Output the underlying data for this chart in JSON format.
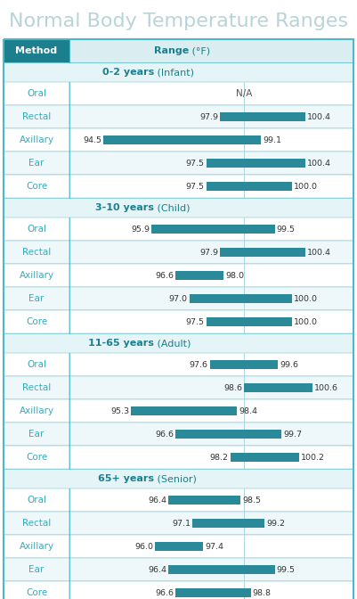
{
  "title": "Normal Body Temperature Ranges",
  "header_method": "Method",
  "header_range": "Range",
  "header_range_unit": " (°F)",
  "teal_dark": "#1b7f8e",
  "teal_bar": "#2a8a9a",
  "teal_header_bg": "#daeef2",
  "teal_group_bg": "#e4f4f7",
  "white_row_bg": "#ffffff",
  "alt_row_bg": "#eef8fb",
  "border_color": "#4fb8c8",
  "title_color": "#b8d4d8",
  "method_color": "#3aaabb",
  "groups": [
    {
      "label": "0-2 years",
      "sublabel": " (Infant)",
      "rows": [
        {
          "method": "Oral",
          "lo": null,
          "hi": null,
          "note": "N/A"
        },
        {
          "method": "Rectal",
          "lo": 97.9,
          "hi": 100.4
        },
        {
          "method": "Axillary",
          "lo": 94.5,
          "hi": 99.1
        },
        {
          "method": "Ear",
          "lo": 97.5,
          "hi": 100.4
        },
        {
          "method": "Core",
          "lo": 97.5,
          "hi": 100.0
        }
      ]
    },
    {
      "label": "3-10 years",
      "sublabel": " (Child)",
      "rows": [
        {
          "method": "Oral",
          "lo": 95.9,
          "hi": 99.5
        },
        {
          "method": "Rectal",
          "lo": 97.9,
          "hi": 100.4
        },
        {
          "method": "Axillary",
          "lo": 96.6,
          "hi": 98.0
        },
        {
          "method": "Ear",
          "lo": 97.0,
          "hi": 100.0
        },
        {
          "method": "Core",
          "lo": 97.5,
          "hi": 100.0
        }
      ]
    },
    {
      "label": "11-65 years",
      "sublabel": " (Adult)",
      "rows": [
        {
          "method": "Oral",
          "lo": 97.6,
          "hi": 99.6
        },
        {
          "method": "Rectal",
          "lo": 98.6,
          "hi": 100.6
        },
        {
          "method": "Axillary",
          "lo": 95.3,
          "hi": 98.4
        },
        {
          "method": "Ear",
          "lo": 96.6,
          "hi": 99.7
        },
        {
          "method": "Core",
          "lo": 98.2,
          "hi": 100.2
        }
      ]
    },
    {
      "label": "65+ years",
      "sublabel": " (Senior)",
      "rows": [
        {
          "method": "Oral",
          "lo": 96.4,
          "hi": 98.5
        },
        {
          "method": "Rectal",
          "lo": 97.1,
          "hi": 99.2
        },
        {
          "method": "Axillary",
          "lo": 96.0,
          "hi": 97.4
        },
        {
          "method": "Ear",
          "lo": 96.4,
          "hi": 99.5
        },
        {
          "method": "Core",
          "lo": 96.6,
          "hi": 98.8
        }
      ]
    }
  ],
  "bar_scale_lo": 93.5,
  "bar_scale_hi": 101.8
}
